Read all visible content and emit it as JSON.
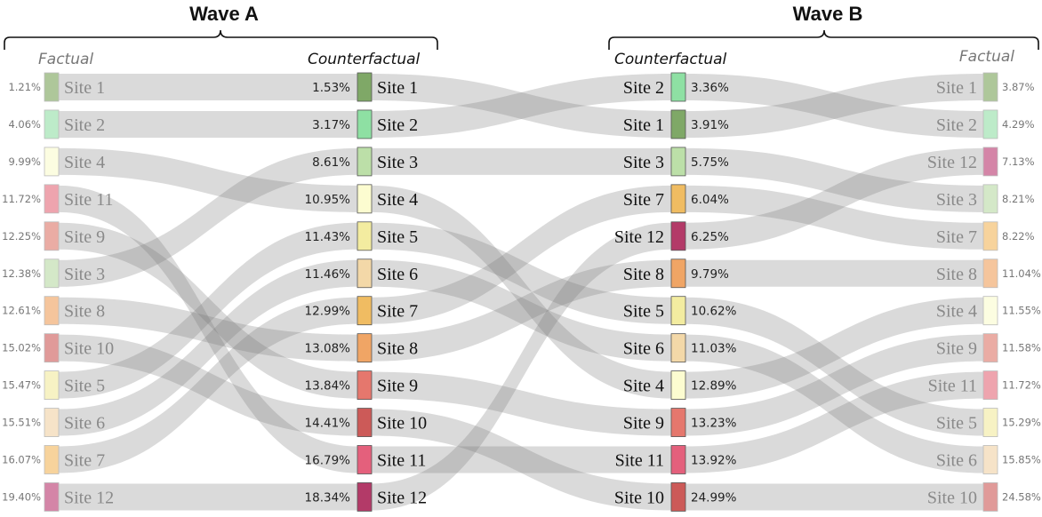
{
  "waves": [
    {
      "title": "Wave A",
      "columns": {
        "left": {
          "header": "Factual",
          "nodes": [
            {
              "site": "Site 1",
              "pct": "1.21%",
              "color": "#aec79a"
            },
            {
              "site": "Site 2",
              "pct": "4.06%",
              "color": "#bdebc9"
            },
            {
              "site": "Site 4",
              "pct": "9.99%",
              "color": "#fcfde1"
            },
            {
              "site": "Site 11",
              "pct": "11.72%",
              "color": "#eea4ae"
            },
            {
              "site": "Site 9",
              "pct": "12.25%",
              "color": "#eaaca4"
            },
            {
              "site": "Site 3",
              "pct": "12.38%",
              "color": "#d4e8c8"
            },
            {
              "site": "Site 8",
              "pct": "12.61%",
              "color": "#f5c59c"
            },
            {
              "site": "Site 10",
              "pct": "15.02%",
              "color": "#e09a99"
            },
            {
              "site": "Site 5",
              "pct": "15.47%",
              "color": "#f7f2c4"
            },
            {
              "site": "Site 6",
              "pct": "15.51%",
              "color": "#f6e3c8"
            },
            {
              "site": "Site 7",
              "pct": "16.07%",
              "color": "#f7d39c"
            },
            {
              "site": "Site 12",
              "pct": "19.40%",
              "color": "#d485a7"
            }
          ]
        },
        "right": {
          "header": "Counterfactual",
          "nodes": [
            {
              "site": "Site 1",
              "pct": "1.53%",
              "color": "#7fa867"
            },
            {
              "site": "Site 2",
              "pct": "3.17%",
              "color": "#8ee0a3"
            },
            {
              "site": "Site 3",
              "pct": "8.61%",
              "color": "#bcdfa8"
            },
            {
              "site": "Site 4",
              "pct": "10.95%",
              "color": "#fcfcd0"
            },
            {
              "site": "Site 5",
              "pct": "11.43%",
              "color": "#f3eca0"
            },
            {
              "site": "Site 6",
              "pct": "11.46%",
              "color": "#f3d8a8"
            },
            {
              "site": "Site 7",
              "pct": "12.99%",
              "color": "#f0bc62"
            },
            {
              "site": "Site 8",
              "pct": "13.08%",
              "color": "#f0a565"
            },
            {
              "site": "Site 9",
              "pct": "13.84%",
              "color": "#e5776d"
            },
            {
              "site": "Site 10",
              "pct": "14.41%",
              "color": "#cc5a58"
            },
            {
              "site": "Site 11",
              "pct": "16.79%",
              "color": "#e4607c"
            },
            {
              "site": "Site 12",
              "pct": "18.34%",
              "color": "#b33a68"
            }
          ]
        }
      }
    },
    {
      "title": "Wave B",
      "columns": {
        "left": {
          "header": "Counterfactual",
          "nodes": [
            {
              "site": "Site 2",
              "pct": "3.36%",
              "color": "#8ee0a3"
            },
            {
              "site": "Site 1",
              "pct": "3.91%",
              "color": "#7fa867"
            },
            {
              "site": "Site 3",
              "pct": "5.75%",
              "color": "#bcdfa8"
            },
            {
              "site": "Site 7",
              "pct": "6.04%",
              "color": "#f0bc62"
            },
            {
              "site": "Site 12",
              "pct": "6.25%",
              "color": "#b33a68"
            },
            {
              "site": "Site 8",
              "pct": "9.79%",
              "color": "#f0a565"
            },
            {
              "site": "Site 5",
              "pct": "10.62%",
              "color": "#f3eca0"
            },
            {
              "site": "Site 6",
              "pct": "11.03%",
              "color": "#f3d8a8"
            },
            {
              "site": "Site 4",
              "pct": "12.89%",
              "color": "#fcfcd0"
            },
            {
              "site": "Site 9",
              "pct": "13.23%",
              "color": "#e5776d"
            },
            {
              "site": "Site 11",
              "pct": "13.92%",
              "color": "#e4607c"
            },
            {
              "site": "Site 10",
              "pct": "24.99%",
              "color": "#cc5a58"
            }
          ]
        },
        "right": {
          "header": "Factual",
          "nodes": [
            {
              "site": "Site 1",
              "pct": "3.87%",
              "color": "#aec79a"
            },
            {
              "site": "Site 2",
              "pct": "4.29%",
              "color": "#bdebc9"
            },
            {
              "site": "Site 12",
              "pct": "7.13%",
              "color": "#d485a7"
            },
            {
              "site": "Site 3",
              "pct": "8.21%",
              "color": "#d4e8c8"
            },
            {
              "site": "Site 7",
              "pct": "8.22%",
              "color": "#f7d39c"
            },
            {
              "site": "Site 8",
              "pct": "11.04%",
              "color": "#f5c59c"
            },
            {
              "site": "Site 4",
              "pct": "11.55%",
              "color": "#fcfde1"
            },
            {
              "site": "Site 9",
              "pct": "11.58%",
              "color": "#eaaca4"
            },
            {
              "site": "Site 11",
              "pct": "11.72%",
              "color": "#eea4ae"
            },
            {
              "site": "Site 5",
              "pct": "15.29%",
              "color": "#f7f2c4"
            },
            {
              "site": "Site 6",
              "pct": "15.85%",
              "color": "#f6e3c8"
            },
            {
              "site": "Site 10",
              "pct": "24.58%",
              "color": "#e09a99"
            }
          ]
        }
      }
    }
  ]
}
